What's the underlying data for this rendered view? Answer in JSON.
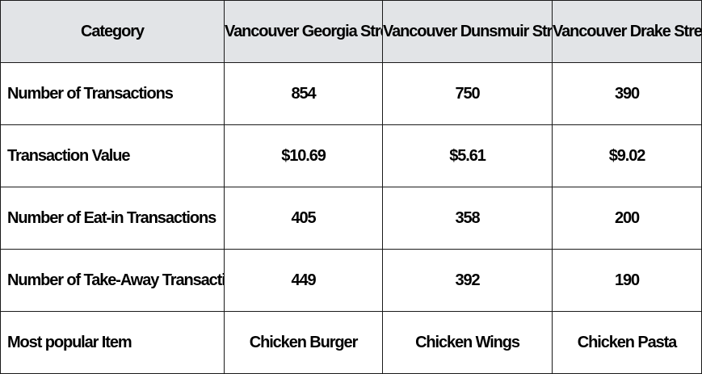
{
  "table": {
    "headers": [
      "Category",
      "Vancouver Georgia Street",
      "Vancouver Dunsmuir Street",
      "Vancouver Drake Street"
    ],
    "rows": [
      {
        "label": "Number of Transactions",
        "values": [
          "854",
          "750",
          "390"
        ]
      },
      {
        "label": "Transaction Value",
        "values": [
          "$10.69",
          "$5.61",
          "$9.02"
        ]
      },
      {
        "label": "Number of Eat-in Transactions",
        "values": [
          "405",
          "358",
          "200"
        ]
      },
      {
        "label": "Number of Take-Away Transactions",
        "values": [
          "449",
          "392",
          "190"
        ]
      },
      {
        "label": "Most popular Item",
        "values": [
          "Chicken Burger",
          "Chicken Wings",
          "Chicken Pasta"
        ]
      }
    ]
  },
  "colors": {
    "header_background": "#e2e4e7",
    "border": "#1a1a1a",
    "text": "#000000"
  }
}
